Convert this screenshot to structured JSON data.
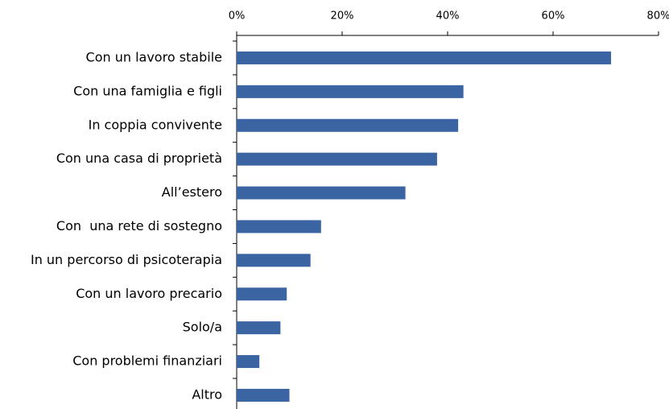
{
  "chart_data": {
    "type": "barh",
    "categories": [
      "Con un lavoro stabile",
      "Con una famiglia e figli",
      "In coppia convivente",
      "Con una casa di proprietà",
      "All’estero",
      "Con  una rete di sostegno",
      "In un percorso di psicoterapia",
      "Con un lavoro precario",
      "Solo/a",
      "Con problemi finanziari",
      "Altro"
    ],
    "values": [
      71,
      43,
      42,
      38,
      32,
      16,
      14,
      9.5,
      8.3,
      4.3,
      10
    ],
    "color": "#3b64a2",
    "xlim": [
      0,
      80
    ],
    "xticks": [
      {
        "value": 0,
        "label": "0%"
      },
      {
        "value": 20,
        "label": "20%"
      },
      {
        "value": 40,
        "label": "40%"
      },
      {
        "value": 60,
        "label": "60%"
      },
      {
        "value": 80,
        "label": "80%"
      }
    ]
  }
}
